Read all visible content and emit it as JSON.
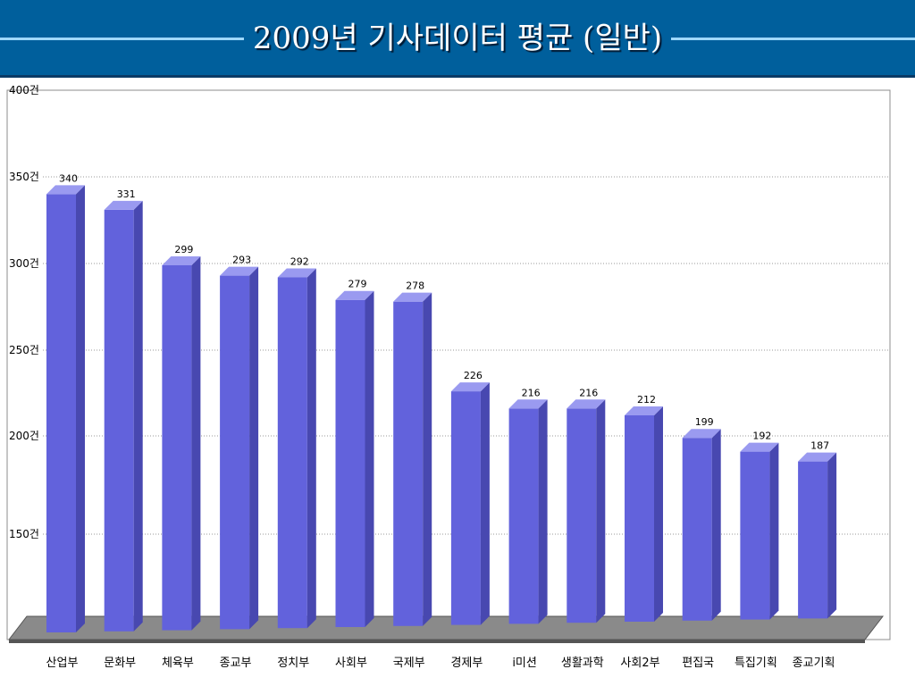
{
  "slide": {
    "title": "2009년 기사데이터 평균 (일반)"
  },
  "colors": {
    "header": "#005f9c",
    "bar_front": "#6262dc",
    "bar_top": "#9a9af0",
    "bar_side": "#4848b0",
    "floor": "#8a8a8a"
  },
  "chart_data": {
    "type": "bar",
    "title": "",
    "xlabel": "",
    "ylabel": "",
    "categories": [
      "산업부",
      "문화부",
      "체육부",
      "종교부",
      "정치부",
      "사회부",
      "국제부",
      "경제부",
      "i미션",
      "생활과학",
      "사회2부",
      "편집국",
      "특집기획",
      "종교기획"
    ],
    "values": [
      340,
      331,
      299,
      293,
      292,
      279,
      278,
      226,
      216,
      216,
      212,
      199,
      192,
      187
    ],
    "data_labels": [
      "340",
      "331",
      "299",
      "293",
      "292",
      "279",
      "278",
      "226",
      "216",
      "216",
      "212",
      "199",
      "192",
      "187"
    ],
    "yticks": [
      150,
      200,
      250,
      300,
      350,
      400
    ],
    "ytick_labels": [
      "150건",
      "200건",
      "250건",
      "300건",
      "350건",
      "400건"
    ],
    "ylim": [
      100,
      400
    ],
    "grid": true,
    "legend": "none"
  }
}
